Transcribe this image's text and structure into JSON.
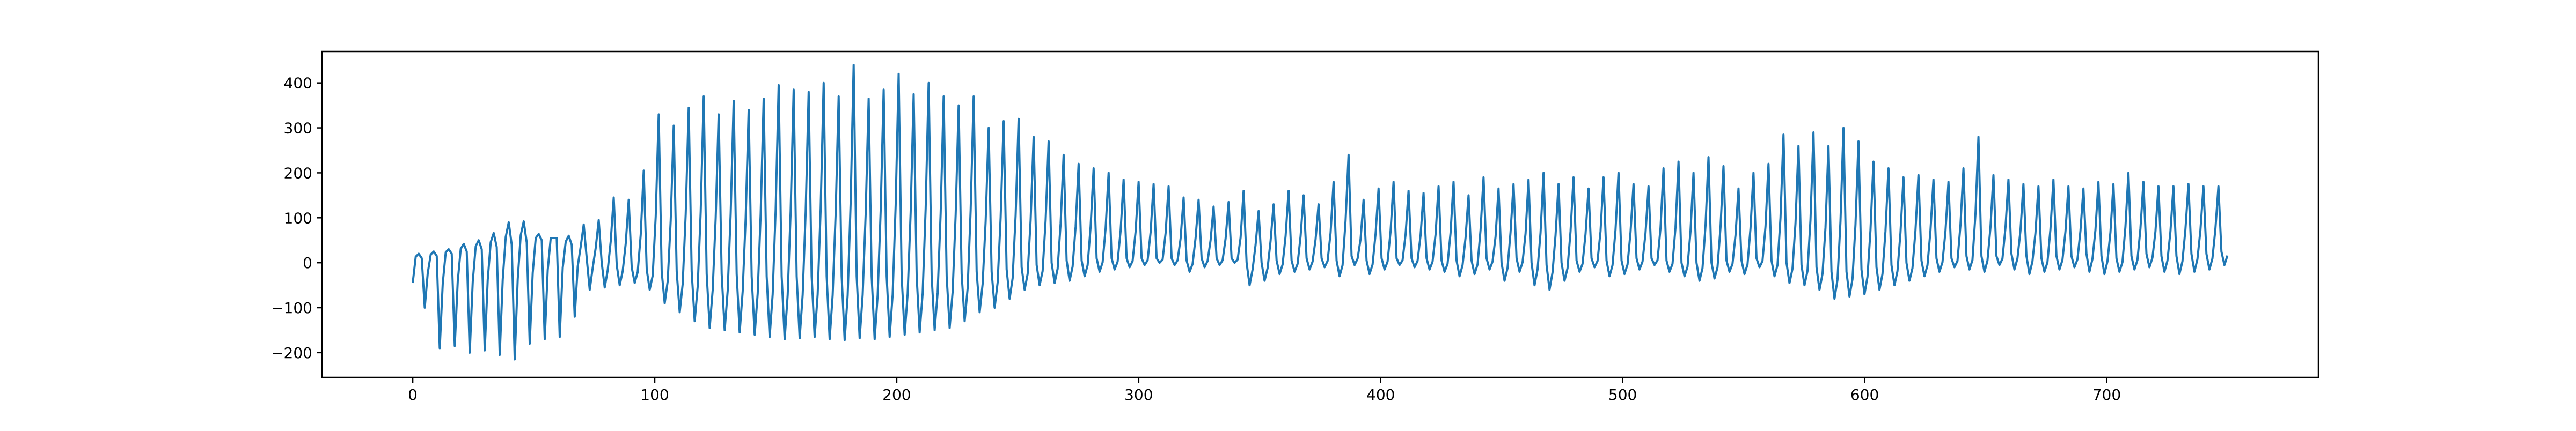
{
  "chart_data": {
    "type": "line",
    "title": "",
    "xlabel": "",
    "ylabel": "",
    "xlim": [
      -37.5,
      787.5
    ],
    "ylim": [
      -255,
      470
    ],
    "x_ticks": [
      0,
      100,
      200,
      300,
      400,
      500,
      600,
      700
    ],
    "y_ticks": [
      -200,
      -100,
      0,
      100,
      200,
      300,
      400
    ],
    "x_tick_labels": [
      "0",
      "100",
      "200",
      "300",
      "400",
      "500",
      "600",
      "700"
    ],
    "y_tick_labels": [
      "−200",
      "−100",
      "0",
      "100",
      "200",
      "300",
      "400"
    ],
    "grid": false,
    "legend": "none",
    "series_color": "#1f77b4",
    "series": [
      {
        "x_start": 0,
        "x_step": 1,
        "points_per_cycle": 5,
        "y_start": -45,
        "peaks": [
          20,
          25,
          30,
          42,
          50,
          66,
          90,
          92,
          64,
          55,
          60,
          85,
          95,
          145,
          140,
          205,
          330,
          305,
          345,
          370,
          330,
          360,
          340,
          365,
          395,
          385,
          380,
          400,
          370,
          440,
          365,
          385,
          420,
          375,
          400,
          370,
          350,
          370,
          300,
          315,
          320,
          280,
          270,
          240,
          220,
          210,
          200,
          185,
          180,
          175,
          170,
          145,
          140,
          125,
          135,
          160,
          115,
          130,
          160,
          150,
          130,
          180,
          240,
          140,
          165,
          180,
          160,
          155,
          170,
          180,
          150,
          190,
          165,
          175,
          185,
          200,
          175,
          190,
          165,
          190,
          200,
          175,
          170,
          210,
          225,
          200,
          235,
          215,
          165,
          200,
          220,
          285,
          260,
          290,
          260,
          300,
          270,
          225,
          210,
          190,
          195,
          185,
          180,
          210,
          280,
          195,
          185,
          175,
          170,
          185,
          170,
          165,
          180,
          175,
          200,
          180,
          170,
          170,
          175,
          170,
          170
        ],
        "troughs": [
          -100,
          -190,
          -185,
          -200,
          -195,
          -205,
          -215,
          -180,
          -170,
          -165,
          -120,
          -60,
          -55,
          -50,
          -45,
          -60,
          -90,
          -110,
          -130,
          -145,
          -150,
          -155,
          -160,
          -165,
          -170,
          -168,
          -165,
          -170,
          -172,
          -168,
          -170,
          -165,
          -160,
          -155,
          -150,
          -145,
          -130,
          -110,
          -100,
          -80,
          -60,
          -50,
          -45,
          -40,
          -30,
          -20,
          -15,
          -10,
          -5,
          0,
          -5,
          -20,
          -10,
          -5,
          0,
          -50,
          -40,
          -25,
          -20,
          -15,
          -10,
          -30,
          -5,
          -25,
          -15,
          -5,
          -10,
          -15,
          -20,
          -30,
          -25,
          -15,
          -40,
          -20,
          -50,
          -60,
          -40,
          -20,
          -10,
          -30,
          -25,
          -15,
          -5,
          -20,
          -30,
          -40,
          -35,
          -20,
          -25,
          -10,
          -30,
          -45,
          -50,
          -60,
          -80,
          -75,
          -70,
          -60,
          -50,
          -40,
          -30,
          -20,
          -10,
          -15,
          -20,
          -5,
          -15,
          -25,
          -20,
          -15,
          -10,
          -20,
          -25,
          -20,
          -15,
          -10,
          -20,
          -25,
          -20,
          -15,
          -5
        ],
        "cycle_mids": [
          10,
          15,
          20,
          25,
          30,
          35,
          40,
          45,
          50,
          55,
          40,
          10,
          0,
          -5,
          -10,
          -15,
          -20,
          -20,
          -20,
          -25,
          -25,
          -25,
          -30,
          -30,
          -30,
          -30,
          -30,
          -30,
          -30,
          -30,
          -30,
          -30,
          -30,
          -30,
          -30,
          -30,
          -25,
          -20,
          -20,
          -15,
          -10,
          -5,
          0,
          5,
          5,
          10,
          10,
          10,
          10,
          10,
          10,
          5,
          10,
          10,
          10,
          0,
          0,
          5,
          5,
          10,
          10,
          5,
          15,
          5,
          10,
          10,
          10,
          10,
          5,
          5,
          5,
          10,
          0,
          10,
          0,
          -5,
          0,
          5,
          10,
          5,
          5,
          10,
          10,
          5,
          0,
          0,
          0,
          5,
          5,
          10,
          5,
          0,
          -5,
          -10,
          -20,
          -20,
          -15,
          -10,
          -5,
          0,
          5,
          10,
          10,
          15,
          15,
          15,
          20,
          15,
          10,
          15,
          15,
          20,
          15,
          10,
          15,
          20,
          15,
          15,
          20,
          20,
          25
        ]
      }
    ]
  }
}
